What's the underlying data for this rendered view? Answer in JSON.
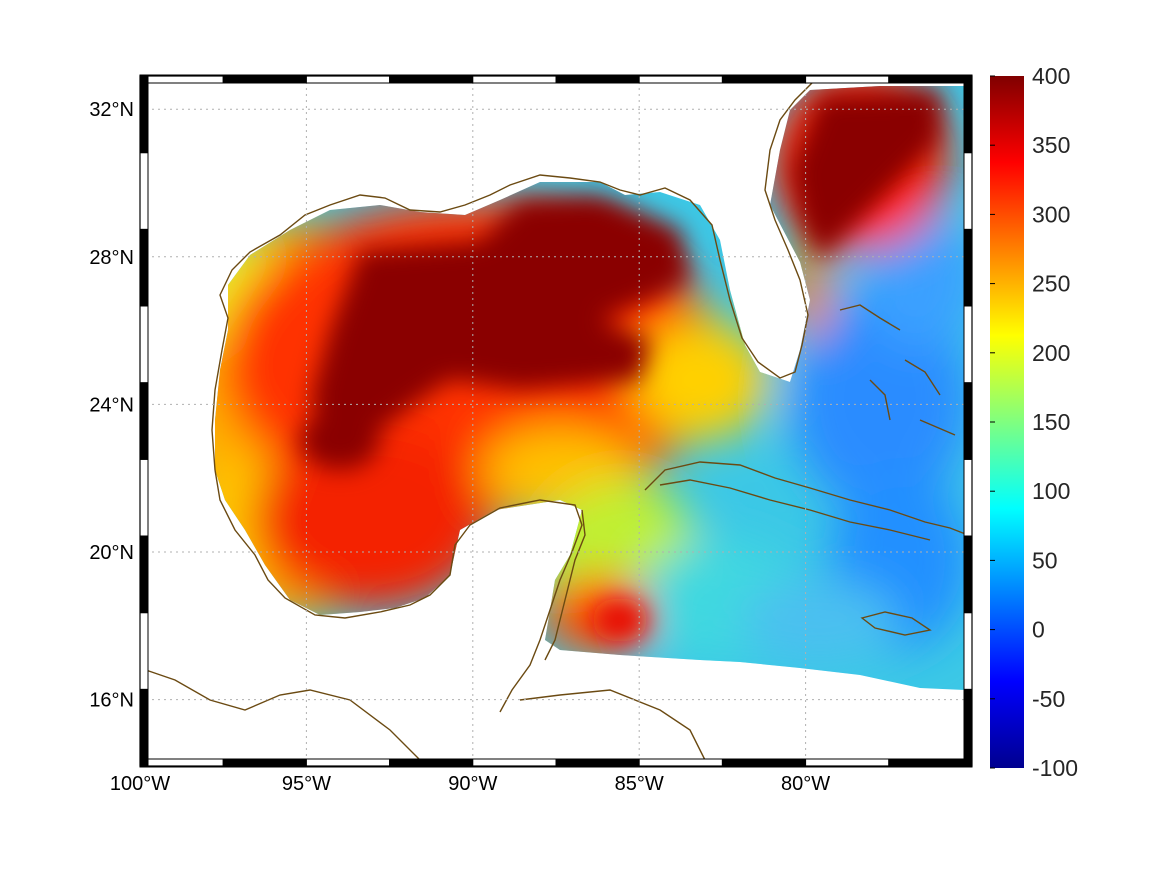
{
  "map": {
    "lon_ticks": [
      "100°W",
      "95°W",
      "90°W",
      "85°W",
      "80°W"
    ],
    "lat_ticks": [
      "32°N",
      "28°N",
      "24°N",
      "20°N",
      "16°N"
    ],
    "lon_values": [
      -100,
      -95,
      -90,
      -85,
      -80
    ],
    "lat_values": [
      32,
      28,
      24,
      20,
      16
    ],
    "lon_range": [
      -100,
      -75
    ],
    "lat_range": [
      14.2,
      32.9
    ],
    "coast_color": "#6b4a12",
    "grid": "dotted"
  },
  "colorbar": {
    "labels": [
      "400",
      "350",
      "300",
      "250",
      "200",
      "150",
      "100",
      "50",
      "0",
      "-50",
      "-100"
    ],
    "range": [
      -100,
      400
    ],
    "colormap": "jet"
  }
}
